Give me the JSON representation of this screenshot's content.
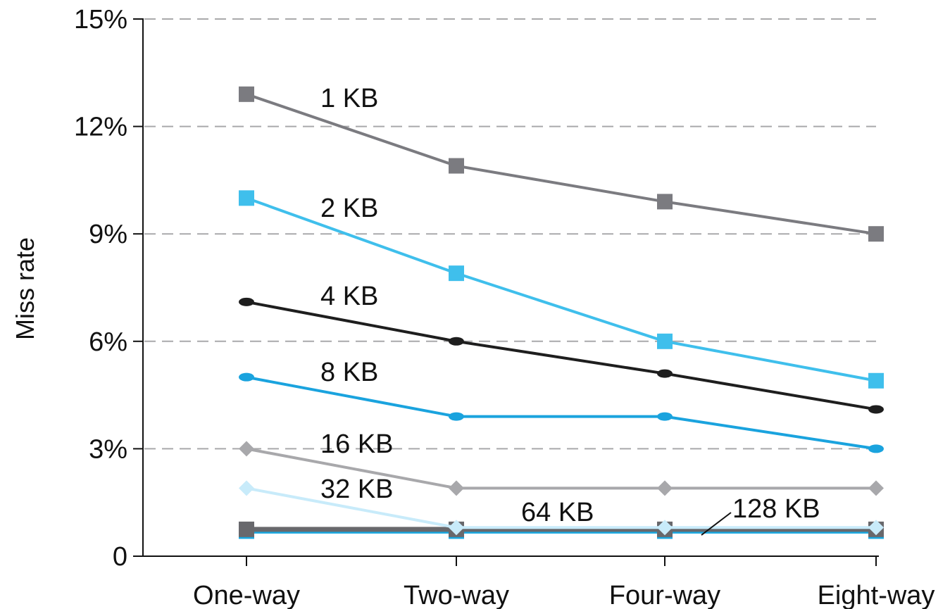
{
  "chart_data": {
    "type": "line",
    "title": "",
    "xlabel": "",
    "ylabel": "Miss rate",
    "categories": [
      "One-way",
      "Two-way",
      "Four-way",
      "Eight-way"
    ],
    "ylim": [
      0,
      15
    ],
    "yticks": [
      0,
      3,
      6,
      9,
      12,
      15
    ],
    "ytick_labels": [
      "0",
      "3%",
      "6%",
      "9%",
      "12%",
      "15%"
    ],
    "grid": "horizontal dashed",
    "series": [
      {
        "name": "1 KB",
        "values": [
          12.9,
          10.9,
          9.9,
          9.0
        ],
        "color": "#7b7b80",
        "marker": "square"
      },
      {
        "name": "2 KB",
        "values": [
          10.0,
          7.9,
          6.0,
          4.9
        ],
        "color": "#3fbfec",
        "marker": "square"
      },
      {
        "name": "4 KB",
        "values": [
          7.1,
          6.0,
          5.1,
          4.1
        ],
        "color": "#1e1e1e",
        "marker": "circle"
      },
      {
        "name": "8 KB",
        "values": [
          5.0,
          3.9,
          3.9,
          3.0
        ],
        "color": "#1aa3de",
        "marker": "circle"
      },
      {
        "name": "16 KB",
        "values": [
          3.0,
          1.9,
          1.9,
          1.9
        ],
        "color": "#a8a8ab",
        "marker": "diamond"
      },
      {
        "name": "32 KB",
        "values": [
          1.9,
          0.8,
          0.8,
          0.8
        ],
        "color": "#c8ebfa",
        "marker": "diamond"
      },
      {
        "name": "64 KB",
        "values": [
          0.75,
          0.75,
          0.75,
          0.75
        ],
        "color": "#68686c",
        "marker": "square"
      },
      {
        "name": "128 KB",
        "values": [
          0.7,
          0.7,
          0.7,
          0.7
        ],
        "color": "#19a7e0",
        "marker": "square"
      }
    ]
  }
}
